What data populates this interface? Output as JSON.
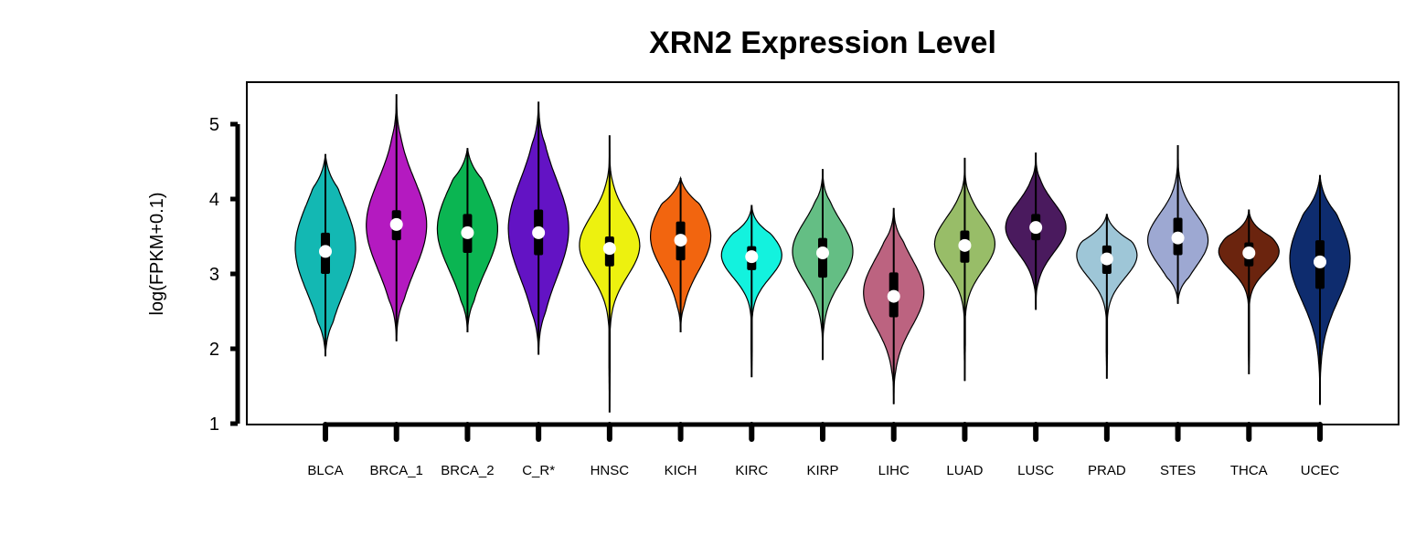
{
  "chart_data": {
    "type": "violin",
    "title": "XRN2 Expression Level",
    "xlabel": "",
    "ylabel": "log(FPKM+0.1)",
    "ylim": [
      1,
      5
    ],
    "yticks": [
      "1",
      "2",
      "3",
      "4",
      "5"
    ],
    "categories": [
      "BLCA",
      "BRCA_1",
      "BRCA_2",
      "C_R*",
      "HNSC",
      "KICH",
      "KIRC",
      "KIRP",
      "LIHC",
      "LUAD",
      "LUSC",
      "PRAD",
      "STES",
      "THCA",
      "UCEC"
    ],
    "series": [
      {
        "category": "BLCA",
        "color": "#13B8B3",
        "min": 1.9,
        "q1": 3.0,
        "median": 3.3,
        "q3": 3.55,
        "max": 4.6,
        "peak": 3.35,
        "spread": 0.6
      },
      {
        "category": "BRCA_1",
        "color": "#B41AC0",
        "min": 2.1,
        "q1": 3.45,
        "median": 3.66,
        "q3": 3.85,
        "max": 5.4,
        "peak": 3.65,
        "spread": 0.6
      },
      {
        "category": "BRCA_2",
        "color": "#0BB552",
        "min": 2.22,
        "q1": 3.28,
        "median": 3.55,
        "q3": 3.8,
        "max": 4.68,
        "peak": 3.6,
        "spread": 0.55
      },
      {
        "category": "C_R*",
        "color": "#6313C4",
        "min": 1.92,
        "q1": 3.25,
        "median": 3.55,
        "q3": 3.86,
        "max": 5.3,
        "peak": 3.6,
        "spread": 0.65
      },
      {
        "category": "HNSC",
        "color": "#EDF10F",
        "min": 1.15,
        "q1": 3.1,
        "median": 3.34,
        "q3": 3.5,
        "max": 4.85,
        "peak": 3.38,
        "spread": 0.4
      },
      {
        "category": "KICH",
        "color": "#F2650F",
        "min": 2.22,
        "q1": 3.18,
        "median": 3.45,
        "q3": 3.7,
        "max": 4.28,
        "peak": 3.5,
        "spread": 0.45
      },
      {
        "category": "KIRC",
        "color": "#13F2DE",
        "min": 1.62,
        "q1": 3.05,
        "median": 3.23,
        "q3": 3.37,
        "max": 3.92,
        "peak": 3.25,
        "spread": 0.3
      },
      {
        "category": "KIRP",
        "color": "#64BE84",
        "min": 1.85,
        "q1": 2.95,
        "median": 3.28,
        "q3": 3.48,
        "max": 4.4,
        "peak": 3.3,
        "spread": 0.4
      },
      {
        "category": "LIHC",
        "color": "#BC6380",
        "min": 1.26,
        "q1": 2.42,
        "median": 2.7,
        "q3": 3.02,
        "max": 3.88,
        "peak": 2.75,
        "spread": 0.45
      },
      {
        "category": "LUAD",
        "color": "#98BD68",
        "min": 1.57,
        "q1": 3.15,
        "median": 3.38,
        "q3": 3.58,
        "max": 4.55,
        "peak": 3.4,
        "spread": 0.35
      },
      {
        "category": "LUSC",
        "color": "#4A1A5E",
        "min": 2.52,
        "q1": 3.45,
        "median": 3.62,
        "q3": 3.8,
        "max": 4.62,
        "peak": 3.62,
        "spread": 0.33
      },
      {
        "category": "PRAD",
        "color": "#9EC6D7",
        "min": 1.6,
        "q1": 3.0,
        "median": 3.2,
        "q3": 3.38,
        "max": 3.8,
        "peak": 3.25,
        "spread": 0.3
      },
      {
        "category": "STES",
        "color": "#9DA8D2",
        "min": 2.6,
        "q1": 3.25,
        "median": 3.48,
        "q3": 3.75,
        "max": 4.72,
        "peak": 3.45,
        "spread": 0.35
      },
      {
        "category": "THCA",
        "color": "#6B240E",
        "min": 1.66,
        "q1": 3.1,
        "median": 3.28,
        "q3": 3.42,
        "max": 3.86,
        "peak": 3.3,
        "spread": 0.25
      },
      {
        "category": "UCEC",
        "color": "#0E2C6E",
        "min": 1.25,
        "q1": 2.8,
        "median": 3.16,
        "q3": 3.45,
        "max": 4.32,
        "peak": 3.2,
        "spread": 0.55
      }
    ]
  }
}
